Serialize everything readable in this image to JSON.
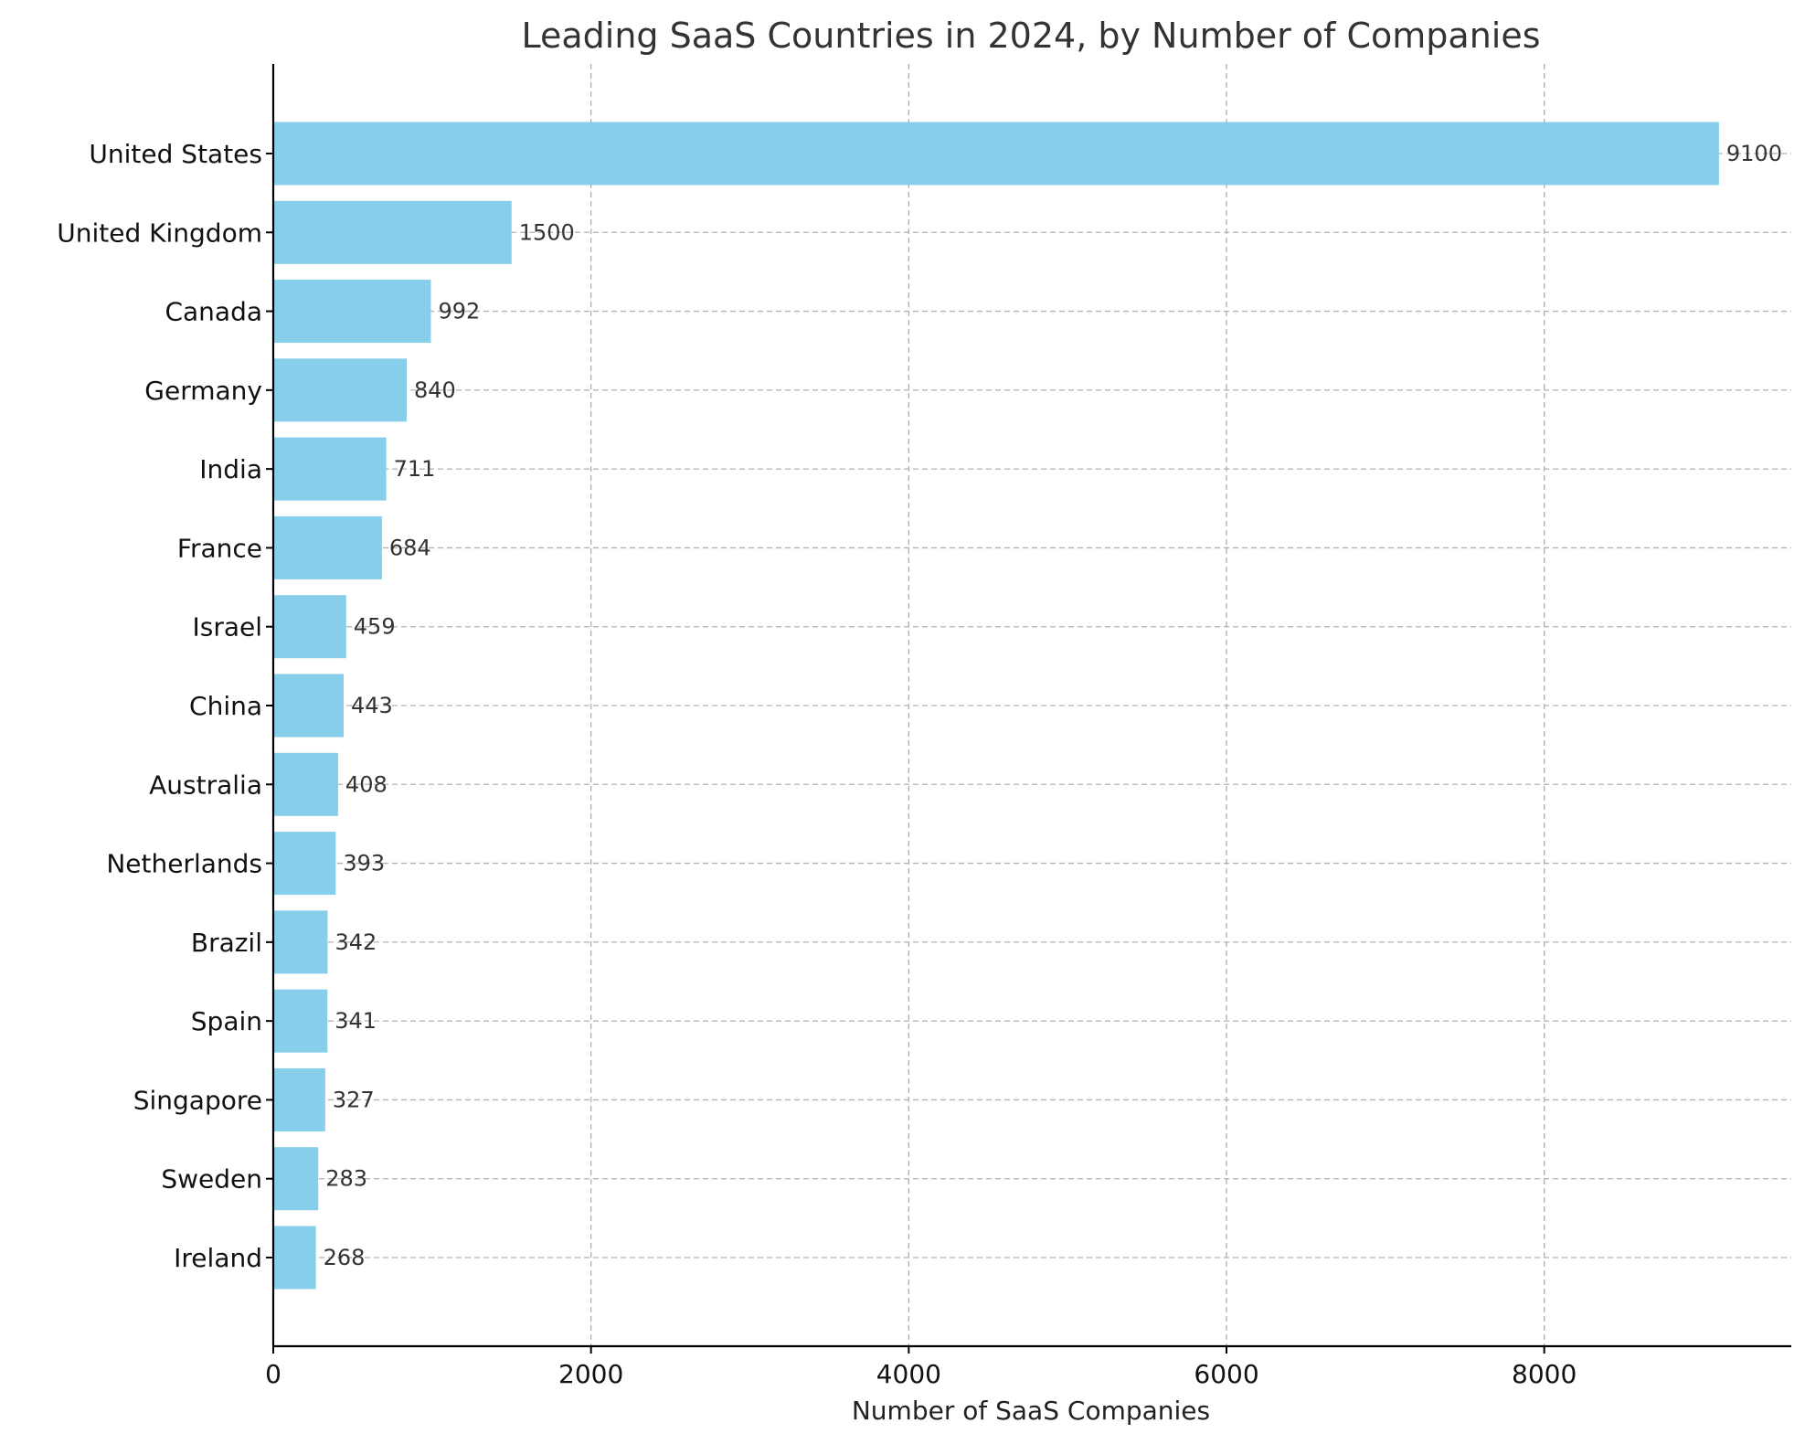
{
  "chart_data": {
    "type": "bar",
    "orientation": "horizontal",
    "title": "Leading SaaS Countries in 2024, by Number of Companies",
    "xlabel": "Number of SaaS Companies",
    "ylabel": "",
    "categories": [
      "United States",
      "United Kingdom",
      "Canada",
      "Germany",
      "India",
      "France",
      "Israel",
      "China",
      "Australia",
      "Netherlands",
      "Brazil",
      "Spain",
      "Singapore",
      "Sweden",
      "Ireland"
    ],
    "values": [
      9100,
      1500,
      992,
      840,
      711,
      684,
      459,
      443,
      408,
      393,
      342,
      341,
      327,
      283,
      268
    ],
    "xlim": [
      0,
      9555
    ],
    "xticks": [
      0,
      2000,
      4000,
      6000,
      8000
    ],
    "grid": true,
    "data_labels": true,
    "bar_color": "#87CEEB"
  }
}
